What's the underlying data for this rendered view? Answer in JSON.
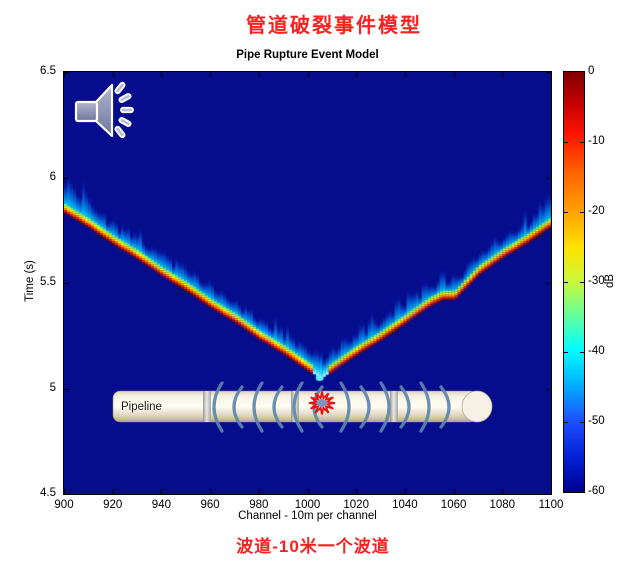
{
  "header": {
    "title_cn": "管道破裂事件模型"
  },
  "footer": {
    "subtitle_cn": "波道-10米一个波道"
  },
  "pipeline": {
    "label": "Pipeline"
  },
  "icons": {
    "speaker": "speaker-with-sound-waves",
    "burst": "rupture-burst-star",
    "arcs": "acoustic-wave-arcs"
  },
  "colors": {
    "plot_background": "#060d8d",
    "title_red": "#fa2121",
    "wave_arc_blue": "#5d85ab",
    "pipe_cream": "#efe8d5",
    "wavefront_core_red": "#f01e00",
    "wavefront_yellow": "#ffee00",
    "coda_cyan": "#00dcff"
  },
  "chart_data": {
    "type": "heatmap",
    "title": "Pipe Rupture Event Model",
    "xlabel": "Channel - 10m per channel",
    "ylabel": "Time (s)",
    "xlim": [
      900,
      1100
    ],
    "ylim": [
      4.5,
      6.5
    ],
    "x_ticks": [
      900,
      920,
      940,
      960,
      980,
      1000,
      1020,
      1040,
      1060,
      1080,
      1100
    ],
    "y_ticks": [
      6.5,
      6,
      5.5,
      5,
      4.5
    ],
    "grid": false,
    "colormap": "jet",
    "background_db": -60,
    "event": {
      "channel": 1005,
      "time_s": 5.05
    },
    "series": [
      {
        "name": "wavefront-left-propagating",
        "peak_db": 0,
        "points": [
          [
            900,
            5.84
          ],
          [
            910,
            5.77
          ],
          [
            920,
            5.69
          ],
          [
            930,
            5.62
          ],
          [
            940,
            5.54
          ],
          [
            950,
            5.47
          ],
          [
            960,
            5.39
          ],
          [
            970,
            5.32
          ],
          [
            980,
            5.24
          ],
          [
            990,
            5.17
          ],
          [
            1000,
            5.09
          ],
          [
            1005,
            5.05
          ]
        ]
      },
      {
        "name": "wavefront-right-propagating",
        "peak_db": 0,
        "points": [
          [
            1005,
            5.05
          ],
          [
            1010,
            5.09
          ],
          [
            1020,
            5.17
          ],
          [
            1030,
            5.24
          ],
          [
            1040,
            5.32
          ],
          [
            1050,
            5.4
          ],
          [
            1055,
            5.43
          ],
          [
            1060,
            5.43
          ],
          [
            1070,
            5.55
          ],
          [
            1080,
            5.63
          ],
          [
            1090,
            5.7
          ],
          [
            1100,
            5.78
          ]
        ]
      }
    ],
    "colorbar": {
      "label": "dB",
      "range": [
        -60,
        0
      ],
      "ticks": [
        "0",
        "-10",
        "-20",
        "-30",
        "-40",
        "-50",
        "-60"
      ]
    }
  }
}
